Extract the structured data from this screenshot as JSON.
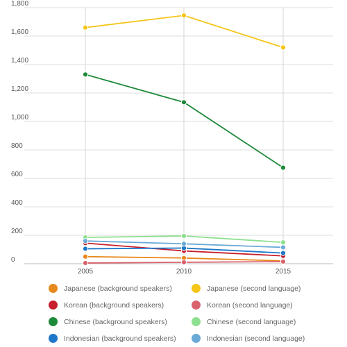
{
  "chart_data": {
    "type": "line",
    "x": [
      2005,
      2010,
      2015
    ],
    "y_ticks": [
      0,
      200,
      400,
      600,
      800,
      1000,
      1200,
      1400,
      1600,
      1800
    ],
    "y_tick_labels": [
      "0",
      "200",
      "400",
      "600",
      "800",
      "1,000",
      "1,200",
      "1,400",
      "1,600",
      "1,800"
    ],
    "x_tick_labels": [
      "2005",
      "2010",
      "2015"
    ],
    "ylim": [
      0,
      1800
    ],
    "grid": true,
    "legend_position": "bottom",
    "series": [
      {
        "name": "Japanese (background speakers)",
        "color": "#e8891c",
        "values": [
          50,
          40,
          20
        ]
      },
      {
        "name": "Japanese (second language)",
        "color": "#f5c518",
        "values": [
          1660,
          1745,
          1520
        ]
      },
      {
        "name": "Korean (background speakers)",
        "color": "#c8202d",
        "values": [
          145,
          90,
          55
        ]
      },
      {
        "name": "Korean (second language)",
        "color": "#d9626d",
        "values": [
          5,
          10,
          15
        ]
      },
      {
        "name": "Chinese (background speakers)",
        "color": "#1d8a3a",
        "values": [
          1330,
          1135,
          675
        ]
      },
      {
        "name": "Chinese (second language)",
        "color": "#8de08f",
        "values": [
          185,
          195,
          150
        ]
      },
      {
        "name": "Indonesian (background speakers)",
        "color": "#1f77c9",
        "values": [
          105,
          110,
          75
        ]
      },
      {
        "name": "Indonesian (second language)",
        "color": "#6aaad6",
        "values": [
          160,
          140,
          115
        ]
      }
    ]
  }
}
